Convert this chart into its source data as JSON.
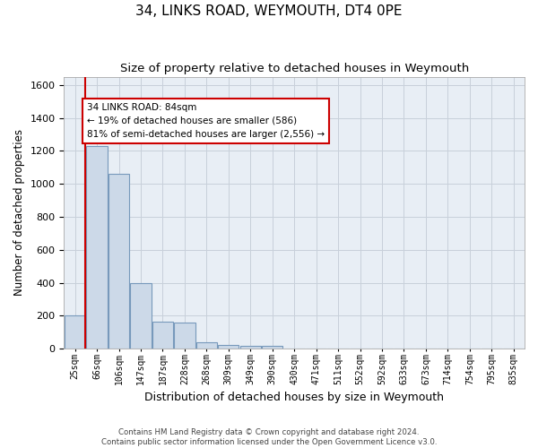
{
  "title": "34, LINKS ROAD, WEYMOUTH, DT4 0PE",
  "subtitle": "Size of property relative to detached houses in Weymouth",
  "xlabel": "Distribution of detached houses by size in Weymouth",
  "ylabel": "Number of detached properties",
  "bins": [
    "25sqm",
    "66sqm",
    "106sqm",
    "147sqm",
    "187sqm",
    "228sqm",
    "268sqm",
    "309sqm",
    "349sqm",
    "390sqm",
    "430sqm",
    "471sqm",
    "511sqm",
    "552sqm",
    "592sqm",
    "633sqm",
    "673sqm",
    "714sqm",
    "754sqm",
    "795sqm",
    "835sqm"
  ],
  "values": [
    200,
    1230,
    1060,
    400,
    165,
    160,
    40,
    25,
    20,
    15,
    0,
    0,
    0,
    0,
    0,
    0,
    0,
    0,
    0,
    0,
    0
  ],
  "bar_color": "#ccd9e8",
  "bar_edge_color": "#7799bb",
  "property_line_bin_idx": 0,
  "property_line_color": "#cc0000",
  "annotation_text": "34 LINKS ROAD: 84sqm\n← 19% of detached houses are smaller (586)\n81% of semi-detached houses are larger (2,556) →",
  "annotation_box_facecolor": "#ffffff",
  "annotation_box_edgecolor": "#cc0000",
  "ylim": [
    0,
    1650
  ],
  "yticks": [
    0,
    200,
    400,
    600,
    800,
    1000,
    1200,
    1400,
    1600
  ],
  "grid_color": "#c8d0da",
  "plot_bg_color": "#e8eef5",
  "footnote": "Contains HM Land Registry data © Crown copyright and database right 2024.\nContains public sector information licensed under the Open Government Licence v3.0.",
  "title_fontsize": 11,
  "subtitle_fontsize": 9.5,
  "xlabel_fontsize": 9,
  "ylabel_fontsize": 8.5,
  "tick_fontsize": 8,
  "xtick_fontsize": 7
}
